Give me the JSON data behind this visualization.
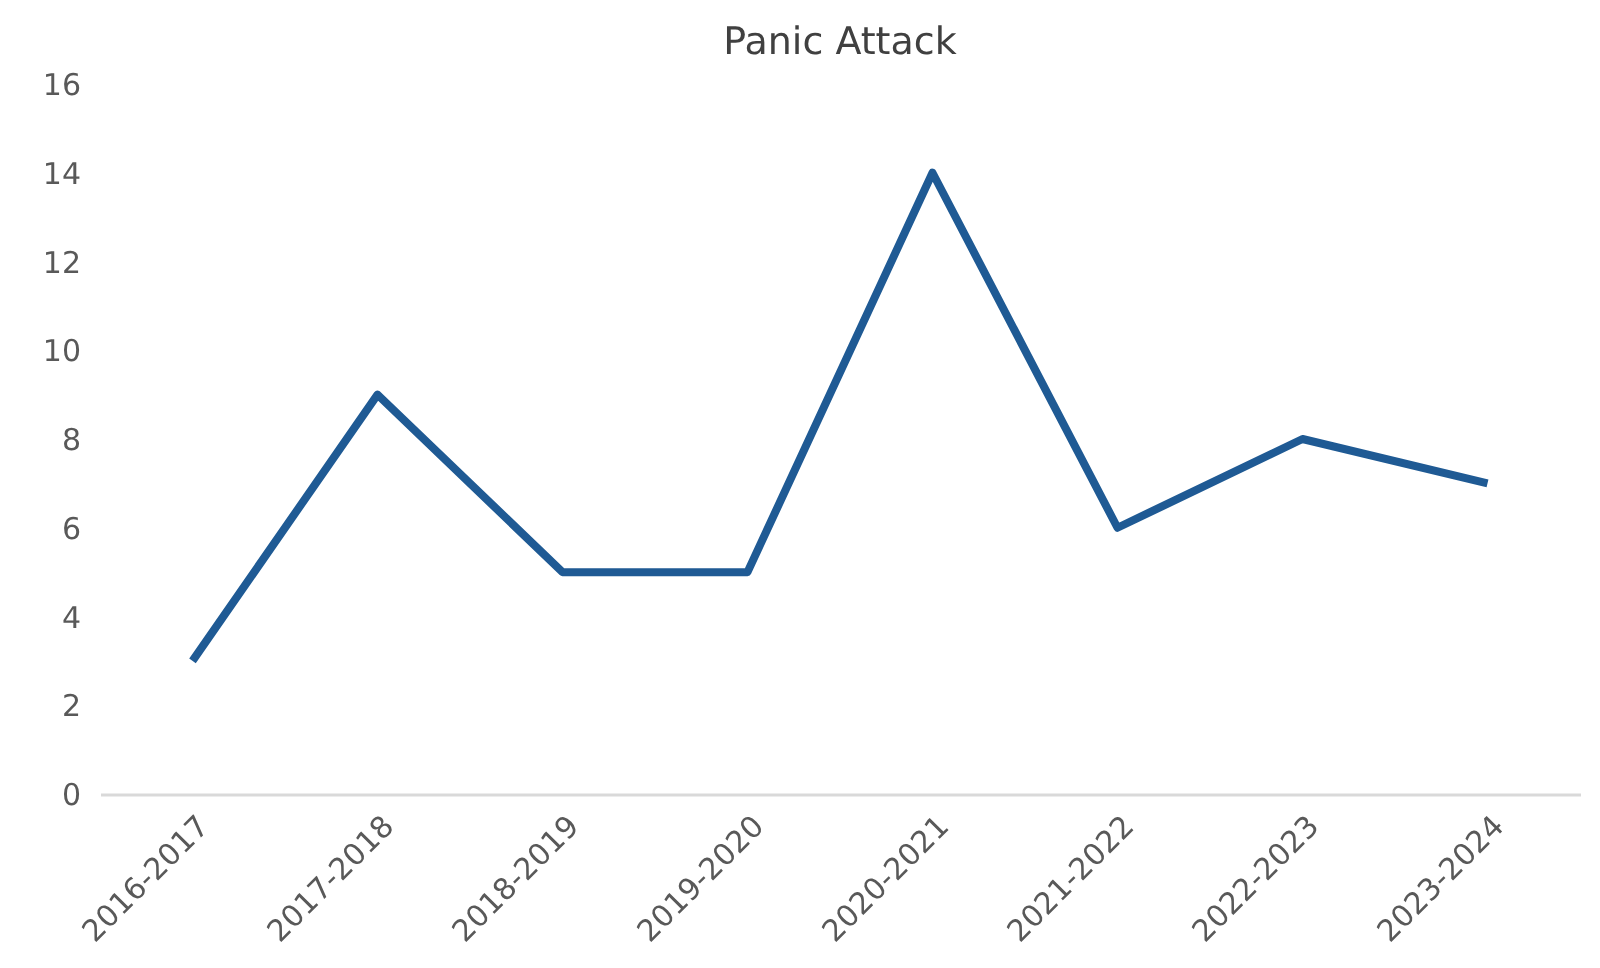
{
  "chart_data": {
    "type": "line",
    "title": "Panic Attack",
    "categories": [
      "2016-2017",
      "2017-2018",
      "2018-2019",
      "2019-2020",
      "2020-2021",
      "2021-2022",
      "2022-2023",
      "2023-2024"
    ],
    "series": [
      {
        "color": "#1f5a94",
        "values": [
          3,
          9,
          5,
          5,
          14,
          6,
          8,
          7
        ]
      }
    ],
    "ylim": [
      0,
      16
    ],
    "yticks": [
      0,
      2,
      4,
      6,
      8,
      10,
      12,
      14,
      16
    ],
    "grid": false,
    "marker": "none",
    "line_style": "solid"
  }
}
